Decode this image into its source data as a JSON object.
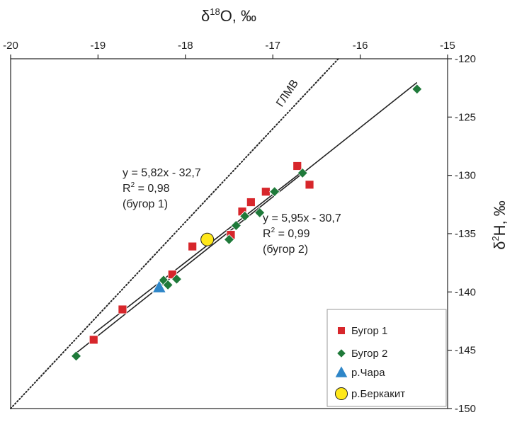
{
  "chart_data": {
    "type": "scatter",
    "xlabel": "δ18O, ‰",
    "ylabel": "δ2H, ‰",
    "xlim": [
      -20,
      -15
    ],
    "ylim": [
      -150,
      -120
    ],
    "x_ticks": [
      "-20",
      "-19",
      "-18",
      "-17",
      "-16",
      "-15"
    ],
    "y_ticks": [
      "-120",
      "-125",
      "-130",
      "-135",
      "-140",
      "-145",
      "-150"
    ],
    "series": [
      {
        "name": "Бугор 1",
        "marker": "square",
        "color": "#d7262b",
        "points": [
          [
            -19.05,
            -144.1
          ],
          [
            -18.72,
            -141.5
          ],
          [
            -18.15,
            -138.5
          ],
          [
            -17.92,
            -136.1
          ],
          [
            -17.48,
            -135.1
          ],
          [
            -17.35,
            -133.1
          ],
          [
            -17.25,
            -132.3
          ],
          [
            -17.08,
            -131.4
          ],
          [
            -16.72,
            -129.2
          ],
          [
            -16.58,
            -130.8
          ]
        ]
      },
      {
        "name": "Бугор 2",
        "marker": "diamond",
        "color": "#1f7a3a",
        "points": [
          [
            -19.25,
            -145.5
          ],
          [
            -18.25,
            -139.0
          ],
          [
            -18.2,
            -139.4
          ],
          [
            -18.1,
            -138.9
          ],
          [
            -17.5,
            -135.5
          ],
          [
            -17.42,
            -134.3
          ],
          [
            -17.32,
            -133.5
          ],
          [
            -17.15,
            -133.2
          ],
          [
            -16.98,
            -131.4
          ],
          [
            -16.66,
            -129.8
          ],
          [
            -15.35,
            -122.6
          ]
        ]
      },
      {
        "name": "р.Чара",
        "marker": "triangle",
        "color": "#2e86c8",
        "points": [
          [
            -18.3,
            -139.6
          ]
        ]
      },
      {
        "name": "р.Беркакит",
        "marker": "circle",
        "color": "#ffe81a",
        "points": [
          [
            -17.75,
            -135.5
          ]
        ]
      }
    ],
    "lines": [
      {
        "label": "ГЛМВ",
        "style": "dotted",
        "slope": 8,
        "intercept": 10
      },
      {
        "label": "бугор 1",
        "style": "solid",
        "slope": 5.82,
        "intercept": -32.7,
        "x_range": [
          -19.05,
          -16.7
        ]
      },
      {
        "label": "бугор 2",
        "style": "solid",
        "slope": 5.95,
        "intercept": -30.7,
        "x_range": [
          -19.25,
          -15.35
        ]
      }
    ],
    "annotations": [
      {
        "lines": [
          "y = 5,82x - 32,7",
          "R",
          "2",
          " = 0,98",
          "(бугор 1)"
        ]
      },
      {
        "lines": [
          "y = 5,95x - 30,7",
          "R",
          "2",
          " = 0,99",
          "(бугор 2)"
        ]
      },
      {
        "lines": [
          "ГЛМВ"
        ]
      }
    ],
    "legend_position": "bottom-right",
    "grid": false
  },
  "labels": {
    "xtitle_main": "δ",
    "xtitle_sup": "18",
    "xtitle_rest": "O, ‰",
    "ytitle_main": "δ",
    "ytitle_sup": "2",
    "ytitle_rest": "H, ‰",
    "eq1_line1": "y = 5,82x - 32,7",
    "eq1_r": "R",
    "eq1_sup": "2",
    "eq1_r_rest": " = 0,98",
    "eq1_line3": "(бугор 1)",
    "eq2_line1": "y = 5,95x - 30,7",
    "eq2_r": "R",
    "eq2_sup": "2",
    "eq2_r_rest": " = 0,99",
    "eq2_line3": "(бугор 2)",
    "gmwl_label": "ГЛМВ"
  }
}
